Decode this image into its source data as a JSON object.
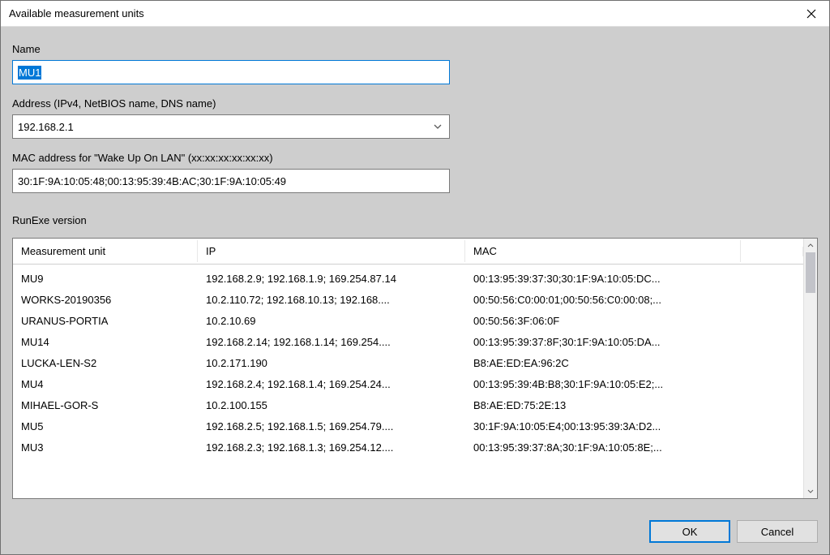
{
  "window": {
    "title": "Available measurement units"
  },
  "fields": {
    "name_label": "Name",
    "name_value": "MU1",
    "address_label": "Address (IPv4, NetBIOS name, DNS name)",
    "address_value": "192.168.2.1",
    "mac_label": "MAC address for \"Wake Up On LAN\" (xx:xx:xx:xx:xx:xx)",
    "mac_value": "30:1F:9A:10:05:48;00:13:95:39:4B:AC;30:1F:9A:10:05:49",
    "runexe_label": "RunExe version"
  },
  "table": {
    "columns": {
      "unit": "Measurement unit",
      "ip": "IP",
      "mac": "MAC"
    },
    "rows": [
      {
        "unit": "MU9",
        "ip": "192.168.2.9; 192.168.1.9; 169.254.87.14",
        "mac": "00:13:95:39:37:30;30:1F:9A:10:05:DC..."
      },
      {
        "unit": "WORKS-20190356",
        "ip": "10.2.110.72; 192.168.10.13; 192.168....",
        "mac": "00:50:56:C0:00:01;00:50:56:C0:00:08;..."
      },
      {
        "unit": "URANUS-PORTIA",
        "ip": "10.2.10.69",
        "mac": "00:50:56:3F:06:0F"
      },
      {
        "unit": "MU14",
        "ip": "192.168.2.14; 192.168.1.14; 169.254....",
        "mac": "00:13:95:39:37:8F;30:1F:9A:10:05:DA..."
      },
      {
        "unit": "LUCKA-LEN-S2",
        "ip": "10.2.171.190",
        "mac": "B8:AE:ED:EA:96:2C"
      },
      {
        "unit": "MU4",
        "ip": "192.168.2.4; 192.168.1.4; 169.254.24...",
        "mac": "00:13:95:39:4B:B8;30:1F:9A:10:05:E2;..."
      },
      {
        "unit": "MIHAEL-GOR-S",
        "ip": "10.2.100.155",
        "mac": "B8:AE:ED:75:2E:13"
      },
      {
        "unit": "MU5",
        "ip": "192.168.2.5; 192.168.1.5; 169.254.79....",
        "mac": "30:1F:9A:10:05:E4;00:13:95:39:3A:D2..."
      },
      {
        "unit": "MU3",
        "ip": "192.168.2.3; 192.168.1.3; 169.254.12....",
        "mac": "00:13:95:39:37:8A;30:1F:9A:10:05:8E;..."
      }
    ]
  },
  "buttons": {
    "ok": "OK",
    "cancel": "Cancel"
  },
  "colors": {
    "dialog_bg": "#cecece",
    "accent": "#0078d7",
    "border": "#7a7a7a",
    "text": "#000000"
  }
}
